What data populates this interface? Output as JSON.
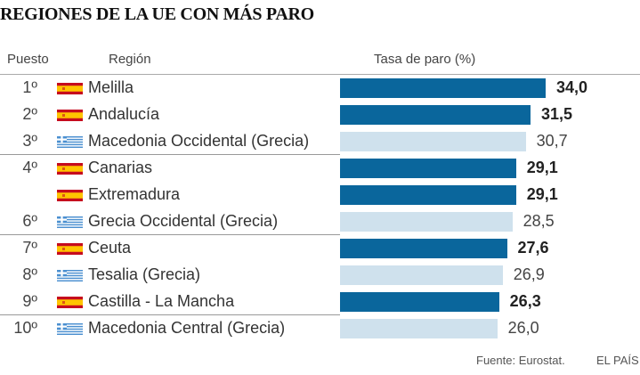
{
  "title": "REGIONES DE LA UE CON MÁS PARO",
  "headers": {
    "rank": "Puesto",
    "region": "Región",
    "rate": "Tasa de paro (%)"
  },
  "footer": {
    "source": "Fuente: Eurostat.",
    "brand": "EL PAÍS"
  },
  "colors": {
    "spain": "#0a669c",
    "greece": "#cfe1ed"
  },
  "chart_data": {
    "type": "bar",
    "orientation": "horizontal",
    "title": "REGIONES DE LA UE CON MÁS PARO",
    "xlabel": "Tasa de paro (%)",
    "xlim": [
      0,
      34
    ],
    "rows": [
      {
        "rank": "1º",
        "region": "Melilla",
        "country": "spain",
        "value": 34.0,
        "label": "34,0"
      },
      {
        "rank": "2º",
        "region": "Andalucía",
        "country": "spain",
        "value": 31.5,
        "label": "31,5"
      },
      {
        "rank": "3º",
        "region": "Macedonia Occidental (Grecia)",
        "country": "greece",
        "value": 30.7,
        "label": "30,7"
      },
      {
        "rank": "4º",
        "region": "Canarias",
        "country": "spain",
        "value": 29.1,
        "label": "29,1"
      },
      {
        "rank": "",
        "region": "Extremadura",
        "country": "spain",
        "value": 29.1,
        "label": "29,1"
      },
      {
        "rank": "6º",
        "region": "Grecia Occidental (Grecia)",
        "country": "greece",
        "value": 28.5,
        "label": "28,5"
      },
      {
        "rank": "7º",
        "region": "Ceuta",
        "country": "spain",
        "value": 27.6,
        "label": "27,6"
      },
      {
        "rank": "8º",
        "region": "Tesalia (Grecia)",
        "country": "greece",
        "value": 26.9,
        "label": "26,9"
      },
      {
        "rank": "9º",
        "region": "Castilla - La Mancha",
        "country": "spain",
        "value": 26.3,
        "label": "26,3"
      },
      {
        "rank": "10º",
        "region": "Macedonia Central (Grecia)",
        "country": "greece",
        "value": 26.0,
        "label": "26,0"
      }
    ]
  }
}
